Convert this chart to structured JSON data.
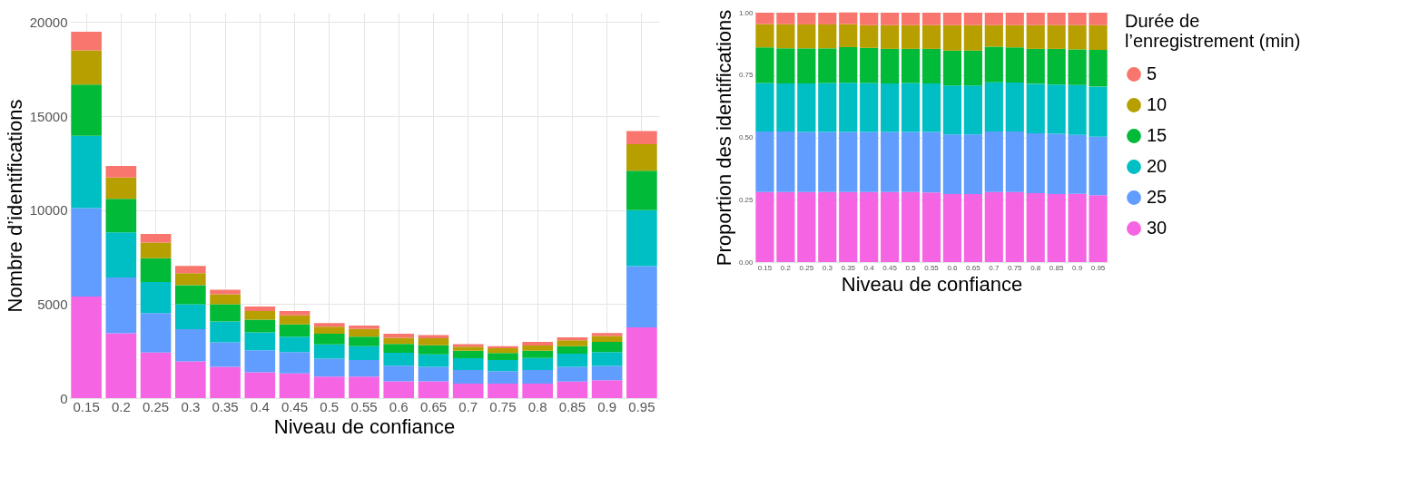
{
  "chart_data": [
    {
      "type": "bar",
      "stacked": true,
      "xlabel": "Niveau de confiance",
      "ylabel": "Nombre d’identifications",
      "grid": true,
      "legend": false,
      "categories": [
        "0.15",
        "0.2",
        "0.25",
        "0.3",
        "0.35",
        "0.4",
        "0.45",
        "0.5",
        "0.55",
        "0.6",
        "0.65",
        "0.7",
        "0.75",
        "0.8",
        "0.85",
        "0.9",
        "0.95"
      ],
      "ylim": [
        0,
        20500
      ],
      "yticks": [
        0,
        5000,
        10000,
        15000,
        20000
      ],
      "series": [
        {
          "color": "#f564e3",
          "values": [
            5400,
            3450,
            2420,
            1950,
            1670,
            1380,
            1310,
            1150,
            1150,
            890,
            890,
            770,
            770,
            770,
            875,
            955,
            3760
          ]
        },
        {
          "color": "#619cff",
          "values": [
            4700,
            2970,
            2100,
            1720,
            1300,
            1160,
            1140,
            950,
            880,
            830,
            780,
            730,
            665,
            730,
            795,
            760,
            3260
          ]
        },
        {
          "color": "#00bfc4",
          "values": [
            3850,
            2390,
            1660,
            1320,
            1110,
            960,
            820,
            760,
            730,
            690,
            655,
            625,
            595,
            640,
            690,
            735,
            2980
          ]
        },
        {
          "color": "#00ba38",
          "values": [
            2730,
            1790,
            1260,
            1010,
            910,
            670,
            650,
            560,
            510,
            470,
            485,
            390,
            375,
            375,
            405,
            545,
            2100
          ]
        },
        {
          "color": "#b79f00",
          "values": [
            1820,
            1130,
            830,
            650,
            530,
            465,
            480,
            375,
            405,
            325,
            375,
            220,
            250,
            280,
            315,
            315,
            1400
          ]
        },
        {
          "color": "#f8766d",
          "values": [
            985,
            620,
            465,
            375,
            250,
            235,
            235,
            200,
            185,
            215,
            170,
            140,
            110,
            200,
            155,
            155,
            700
          ]
        }
      ]
    },
    {
      "type": "bar",
      "stacked": true,
      "xlabel": "Niveau de confiance",
      "ylabel": "Proportion des identifications",
      "grid": true,
      "legend": "right",
      "legend_title": "Durée de l’enregistrement (min)",
      "categories": [
        "0.15",
        "0.2",
        "0.25",
        "0.3",
        "0.35",
        "0.4",
        "0.45",
        "0.5",
        "0.55",
        "0.6",
        "0.65",
        "0.7",
        "0.75",
        "0.8",
        "0.85",
        "0.9",
        "0.95"
      ],
      "ylim": [
        0,
        1
      ],
      "yticks": [
        {
          "value": 0,
          "label": "0.00"
        },
        {
          "value": 0.25,
          "label": "0.25"
        },
        {
          "value": 0.5,
          "label": "0.50"
        },
        {
          "value": 0.75,
          "label": "0.75"
        },
        {
          "value": 1,
          "label": "1.00"
        }
      ],
      "series": [
        {
          "name": "30",
          "color": "#f564e3",
          "values": [
            0.281,
            0.281,
            0.281,
            0.281,
            0.281,
            0.281,
            0.281,
            0.281,
            0.279,
            0.273,
            0.273,
            0.281,
            0.281,
            0.276,
            0.273,
            0.274,
            0.268
          ]
        },
        {
          "name": "25",
          "color": "#619cff",
          "values": [
            0.243,
            0.243,
            0.241,
            0.241,
            0.241,
            0.241,
            0.241,
            0.241,
            0.243,
            0.239,
            0.239,
            0.243,
            0.243,
            0.24,
            0.242,
            0.236,
            0.235
          ]
        },
        {
          "name": "20",
          "color": "#00bfc4",
          "values": [
            0.194,
            0.192,
            0.194,
            0.196,
            0.197,
            0.196,
            0.194,
            0.196,
            0.194,
            0.196,
            0.196,
            0.197,
            0.196,
            0.199,
            0.197,
            0.2,
            0.201
          ]
        },
        {
          "name": "15",
          "color": "#00ba38",
          "values": [
            0.143,
            0.141,
            0.141,
            0.139,
            0.143,
            0.141,
            0.139,
            0.137,
            0.139,
            0.14,
            0.14,
            0.143,
            0.141,
            0.14,
            0.143,
            0.143,
            0.147
          ]
        },
        {
          "name": "10",
          "color": "#b79f00",
          "values": [
            0.093,
            0.097,
            0.096,
            0.096,
            0.092,
            0.091,
            0.095,
            0.095,
            0.095,
            0.102,
            0.102,
            0.086,
            0.089,
            0.095,
            0.095,
            0.097,
            0.099
          ]
        },
        {
          "name": "5",
          "color": "#f8766d",
          "values": [
            0.046,
            0.046,
            0.047,
            0.047,
            0.047,
            0.05,
            0.05,
            0.05,
            0.05,
            0.05,
            0.05,
            0.05,
            0.05,
            0.05,
            0.05,
            0.05,
            0.05
          ]
        }
      ]
    }
  ]
}
